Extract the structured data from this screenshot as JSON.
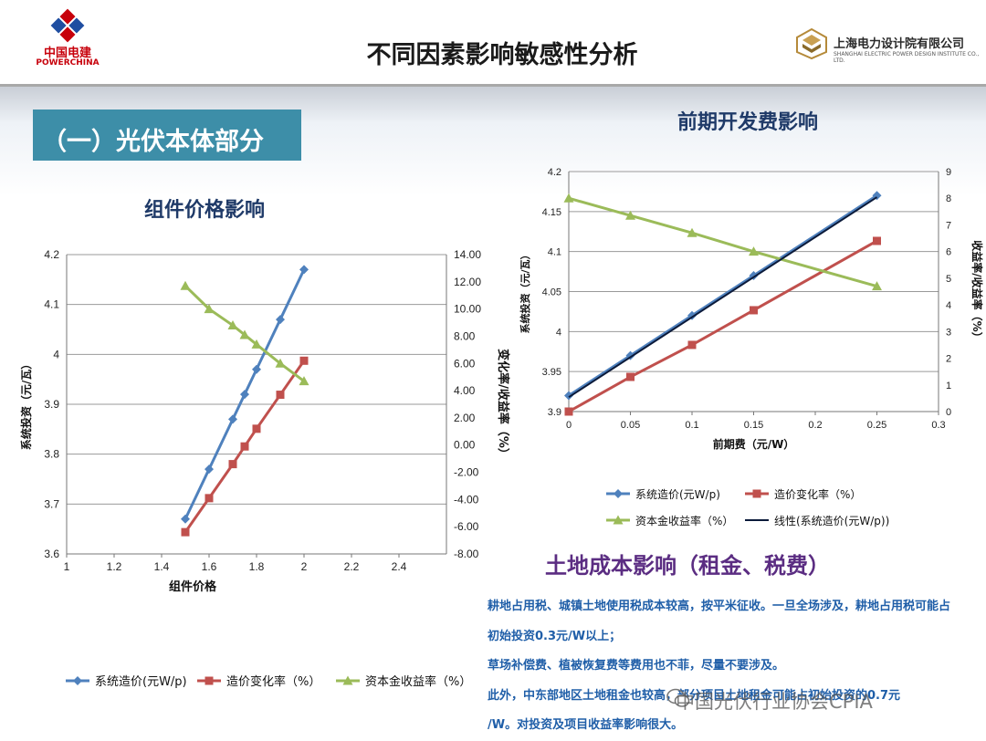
{
  "header": {
    "title": "不同因素影响敏感性分析",
    "left_logo_cn": "中国电建",
    "left_logo_en": "POWERCHINA",
    "right_logo_cn": "上海电力设计院有限公司",
    "right_logo_en": "SHANGHAI ELECTRIC POWER DESIGN INSTITUTE CO., LTD."
  },
  "section": {
    "label": "（一）光伏本体部分"
  },
  "chart_data": [
    {
      "type": "line",
      "title": "组件价格影响",
      "xlabel": "组件价格",
      "ylabel_left": "系统投资（元/瓦）",
      "ylabel_right": "变化率/收益率（%）",
      "xlim": [
        1,
        2.6
      ],
      "x_ticks": [
        "1",
        "1.2",
        "1.4",
        "1.6",
        "1.8",
        "2",
        "2.2",
        "2.4"
      ],
      "ylim_left": [
        3.6,
        4.2
      ],
      "y_ticks_left": [
        "3.6",
        "3.7",
        "3.8",
        "3.9",
        "4",
        "4.1",
        "4.2"
      ],
      "ylim_right": [
        -8,
        14
      ],
      "y_ticks_right": [
        "-8.00",
        "-6.00",
        "-4.00",
        "-2.00",
        "0.00",
        "2.00",
        "4.00",
        "6.00",
        "8.00",
        "10.00",
        "12.00",
        "14.00"
      ],
      "grid": "horizontal",
      "legend_position": "bottom",
      "series": [
        {
          "name": "系统造价(元W/p)",
          "axis": "left",
          "marker": "diamond",
          "color": "#4f81bd",
          "x": [
            1.5,
            1.6,
            1.7,
            1.75,
            1.8,
            1.9,
            2.0
          ],
          "y": [
            3.67,
            3.77,
            3.87,
            3.92,
            3.97,
            4.07,
            4.17
          ]
        },
        {
          "name": "造价变化率（%）",
          "axis": "right",
          "marker": "square",
          "color": "#c0504d",
          "x": [
            1.5,
            1.6,
            1.7,
            1.75,
            1.8,
            1.9,
            2.0
          ],
          "y": [
            -6.4,
            -3.9,
            -1.4,
            -0.1,
            1.2,
            3.7,
            6.2
          ]
        },
        {
          "name": "资本金收益率（%）",
          "axis": "right",
          "marker": "triangle",
          "color": "#9bbb59",
          "x": [
            1.5,
            1.6,
            1.7,
            1.75,
            1.8,
            1.9,
            2.0
          ],
          "y": [
            11.7,
            10.0,
            8.8,
            8.1,
            7.4,
            6.0,
            4.7
          ]
        }
      ]
    },
    {
      "type": "line",
      "title": "前期开发费影响",
      "xlabel": "前期费（元/W）",
      "ylabel_left": "系统投资（元/瓦）",
      "ylabel_right": "收益率/收益率（%）",
      "xlim": [
        0,
        0.3
      ],
      "x_ticks": [
        "0",
        "0.05",
        "0.1",
        "0.15",
        "0.2",
        "0.25",
        "0.3"
      ],
      "ylim_left": [
        3.9,
        4.2
      ],
      "y_ticks_left": [
        "3.9",
        "3.95",
        "4",
        "4.05",
        "4.1",
        "4.15",
        "4.2"
      ],
      "ylim_right": [
        0,
        9
      ],
      "y_ticks_right": [
        "0",
        "1",
        "2",
        "3",
        "4",
        "5",
        "6",
        "7",
        "8",
        "9"
      ],
      "grid": "horizontal",
      "legend_position": "bottom",
      "series": [
        {
          "name": "系统造价(元W/p)",
          "axis": "left",
          "marker": "diamond",
          "color": "#4f81bd",
          "x": [
            0,
            0.05,
            0.1,
            0.15,
            0.25
          ],
          "y": [
            3.92,
            3.97,
            4.02,
            4.07,
            4.17
          ]
        },
        {
          "name": "造价变化率（%）",
          "axis": "right",
          "marker": "square",
          "color": "#c0504d",
          "x": [
            0,
            0.05,
            0.1,
            0.15,
            0.25
          ],
          "y": [
            0,
            1.3,
            2.5,
            3.8,
            6.4
          ]
        },
        {
          "name": "资本金收益率（%）",
          "axis": "right",
          "marker": "triangle",
          "color": "#9bbb59",
          "x": [
            0,
            0.05,
            0.1,
            0.15,
            0.25
          ],
          "y": [
            8.0,
            7.35,
            6.7,
            6.0,
            4.7
          ]
        },
        {
          "name": "线性(系统造价(元W/p))",
          "axis": "left",
          "marker": "none",
          "color": "#0b1a3a",
          "x": [
            0,
            0.25
          ],
          "y": [
            3.918,
            4.168
          ]
        }
      ]
    }
  ],
  "land": {
    "title": "土地成本影响（租金、税费）",
    "lines": [
      "耕地占用税、城镇土地使用税成本较高，按平米征收。一旦全场涉及，耕地占用税可能占",
      "初始投资0.3元/W以上；",
      "草场补偿费、植被恢复费等费用也不菲，尽量不要涉及。",
      "此外，中东部地区土地租金也较高，部分项目土地租金可能占初始投资的0.7元",
      "/W。对投资及项目收益率影响很大。"
    ]
  },
  "watermark": {
    "text": "中国光伏行业协会CPIA"
  }
}
